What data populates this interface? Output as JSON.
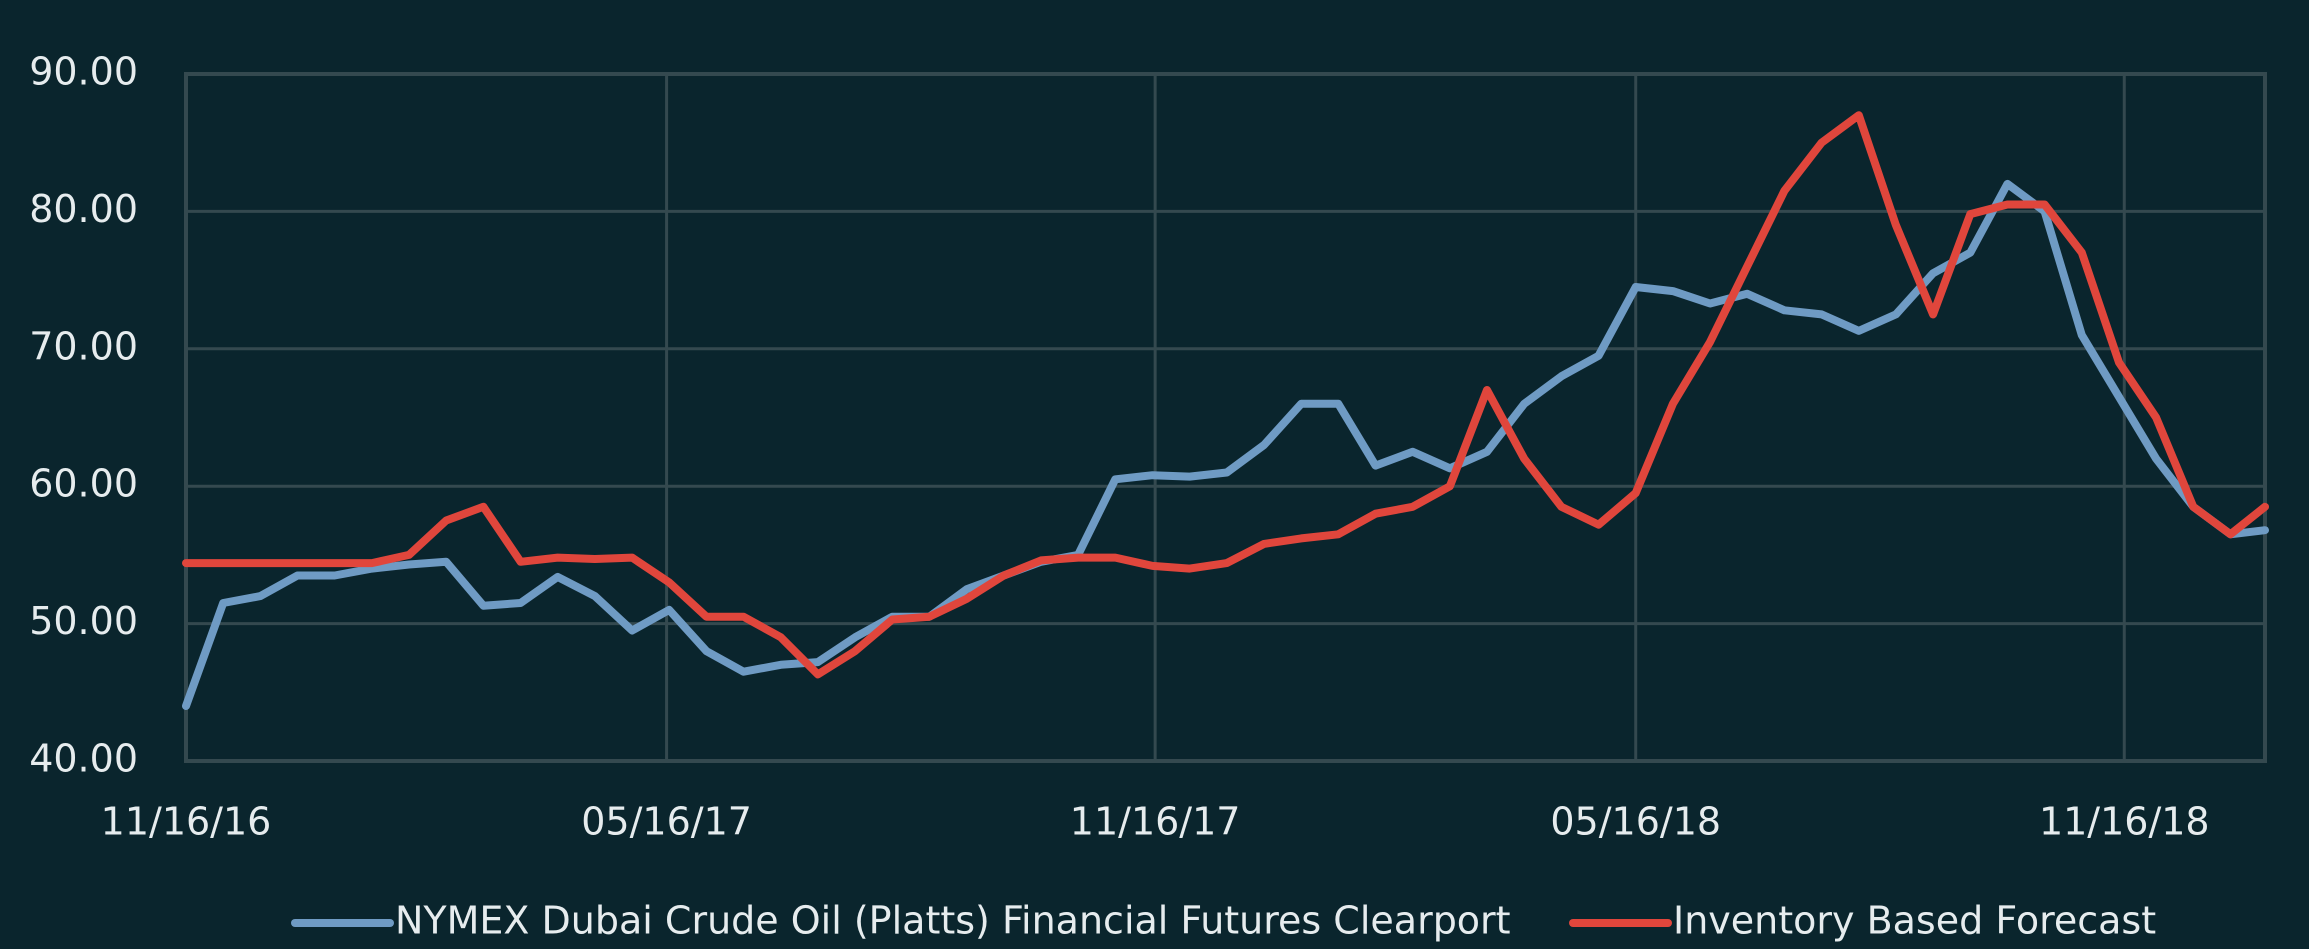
{
  "chart_data": {
    "type": "line",
    "x": [
      "11/16/16",
      "11/30/16",
      "12/14/16",
      "12/28/16",
      "01/11/17",
      "01/25/17",
      "02/08/17",
      "02/22/17",
      "03/08/17",
      "03/22/17",
      "04/05/17",
      "04/19/17",
      "05/03/17",
      "05/17/17",
      "05/31/17",
      "06/14/17",
      "06/28/17",
      "07/12/17",
      "07/26/17",
      "08/09/17",
      "08/23/17",
      "09/06/17",
      "09/20/17",
      "10/04/17",
      "10/18/17",
      "11/01/17",
      "11/15/17",
      "11/29/17",
      "12/13/17",
      "12/27/17",
      "01/10/18",
      "01/24/18",
      "02/07/18",
      "02/21/18",
      "03/07/18",
      "03/21/18",
      "04/04/18",
      "04/18/18",
      "05/02/18",
      "05/16/18",
      "05/30/18",
      "06/13/18",
      "06/27/18",
      "07/11/18",
      "07/25/18",
      "08/08/18",
      "08/22/18",
      "09/05/18",
      "09/19/18",
      "10/03/18",
      "10/17/18",
      "10/31/18",
      "11/14/18",
      "11/28/18",
      "12/12/18",
      "12/26/18",
      "01/08/19"
    ],
    "series": [
      {
        "name": "NYMEX Dubai Crude Oil (Platts) Financial Futures Clearport",
        "color": "#6f9bc4",
        "values": [
          44,
          51.5,
          52,
          53.5,
          53.5,
          54,
          54.3,
          54.5,
          51.3,
          51.5,
          53.4,
          52,
          49.5,
          51,
          48,
          46.5,
          47,
          47.2,
          49,
          50.5,
          50.5,
          52.5,
          53.5,
          54.5,
          55,
          60.5,
          60.8,
          60.7,
          61,
          63,
          66,
          66,
          61.5,
          62.5,
          61.3,
          62.5,
          66,
          68,
          69.5,
          74.5,
          74.2,
          73.3,
          74,
          72.8,
          72.5,
          71.3,
          72.5,
          75.5,
          77,
          82,
          80,
          71,
          66.5,
          62,
          58.5,
          56.5,
          56.8
        ]
      },
      {
        "name": "Inventory Based Forecast",
        "color": "#e0463c",
        "values": [
          54.4,
          54.4,
          54.4,
          54.4,
          54.4,
          54.4,
          55,
          57.5,
          58.5,
          54.5,
          54.8,
          54.7,
          54.8,
          53,
          50.5,
          50.5,
          49,
          46.3,
          48,
          50.3,
          50.5,
          51.8,
          53.5,
          54.6,
          54.8,
          54.8,
          54.2,
          54,
          54.4,
          55.8,
          56.2,
          56.5,
          58,
          58.5,
          60,
          67,
          62,
          58.5,
          57.2,
          59.5,
          66,
          70.5,
          76,
          81.5,
          85,
          87,
          79,
          72.5,
          79.8,
          80.5,
          80.5,
          77,
          69,
          65,
          58.5,
          56.5,
          58.5
        ]
      }
    ],
    "xlim": [
      "11/16/16",
      "01/08/19"
    ],
    "xticks": [
      "11/16/16",
      "05/16/17",
      "11/16/17",
      "05/16/18",
      "11/16/18"
    ],
    "ylim": [
      40,
      90
    ],
    "yticks": [
      {
        "value": 40,
        "label": "40.00"
      },
      {
        "value": 50,
        "label": "50.00"
      },
      {
        "value": 60,
        "label": "60.00"
      },
      {
        "value": 70,
        "label": "70.00"
      },
      {
        "value": 80,
        "label": "80.00"
      },
      {
        "value": 90,
        "label": "90.00"
      }
    ],
    "grid": true
  }
}
